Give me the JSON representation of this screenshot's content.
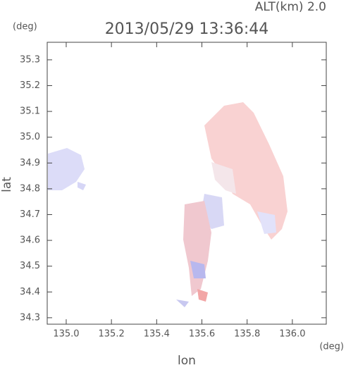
{
  "chart_data": {
    "type": "map",
    "title": "2013/05/29 13:36:44",
    "subtitle": "ALT(km)  2.0",
    "x_label": "lon",
    "y_label": "lat",
    "x_unit": "(deg)",
    "y_unit": "(deg)",
    "xlim": [
      134.916,
      136.15
    ],
    "ylim": [
      34.275,
      35.368
    ],
    "xticks": [
      {
        "value": 135.0,
        "label": "135.0"
      },
      135.2,
      135.4,
      135.6,
      135.8,
      {
        "value": 136.0,
        "label": "136.0"
      }
    ],
    "yticks": [
      34.3,
      34.4,
      34.5,
      34.6,
      34.7,
      34.8,
      34.9,
      {
        "value": 35.0,
        "label": "35.0"
      },
      35.1,
      35.2,
      35.3
    ]
  }
}
